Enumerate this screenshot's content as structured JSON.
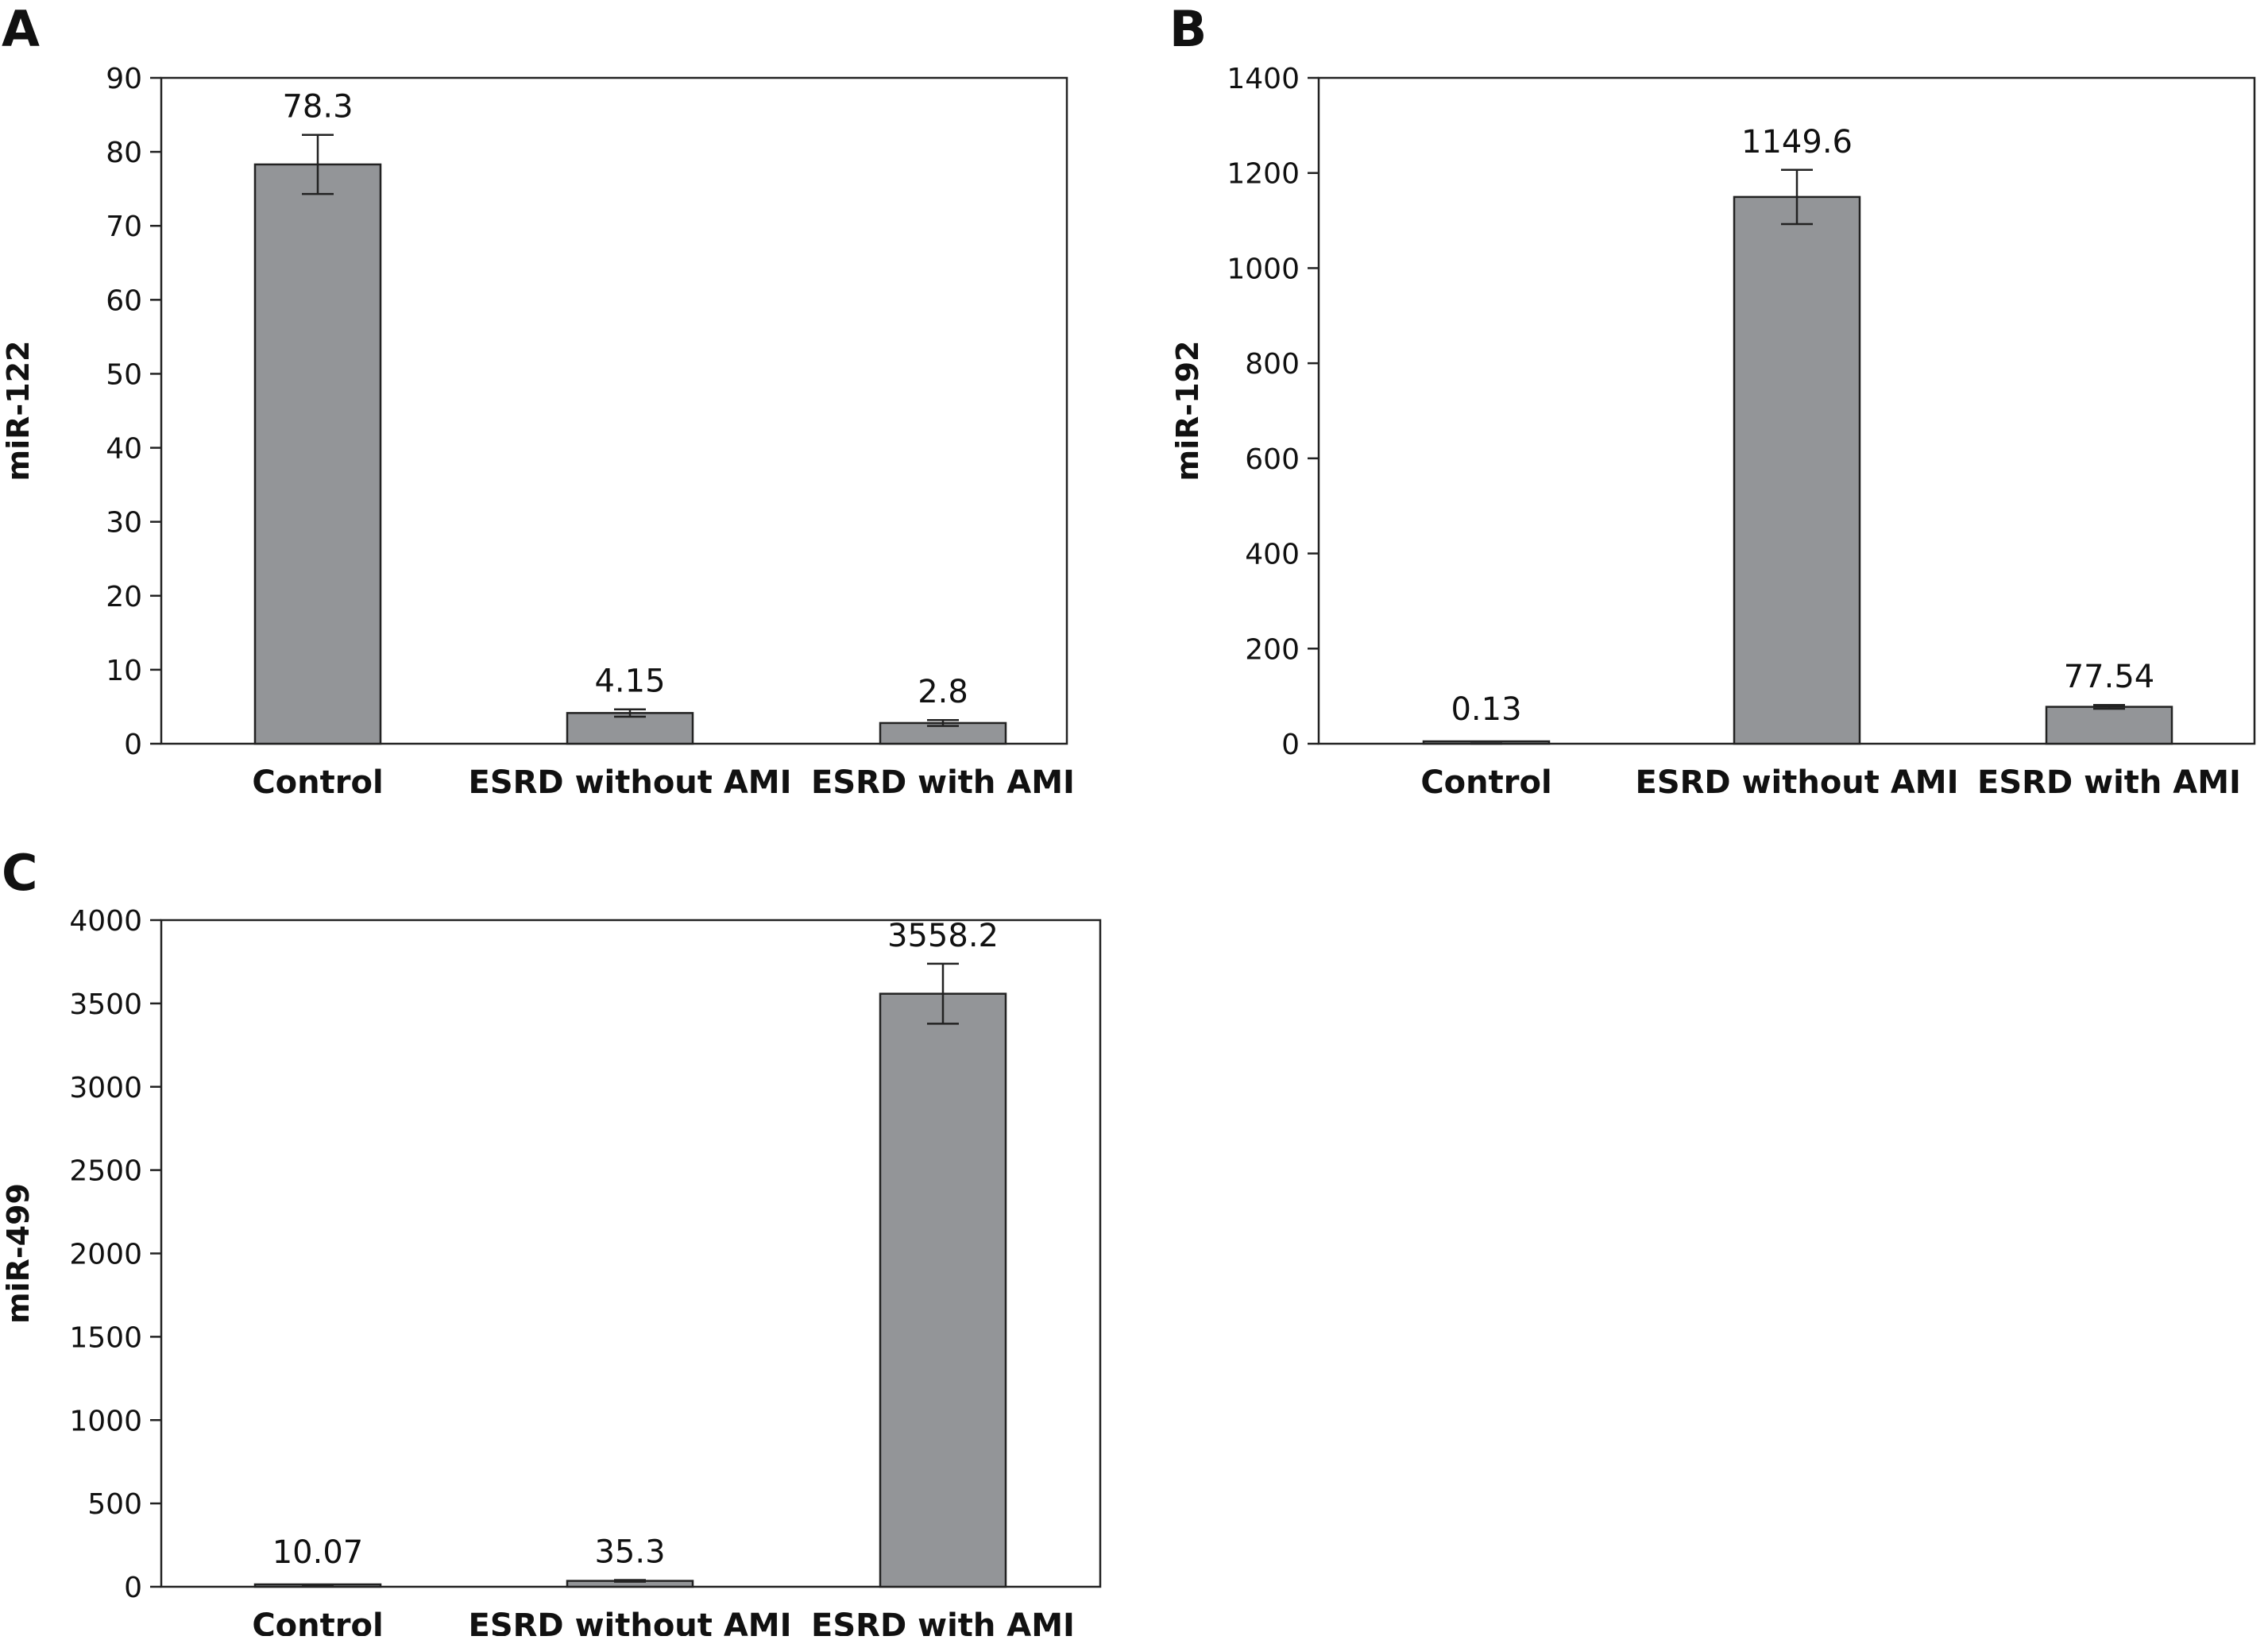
{
  "chart_data": [
    {
      "panel": "A",
      "type": "bar",
      "categories": [
        "Control",
        "ESRD without AMI",
        "ESRD with AMI"
      ],
      "values": [
        78.3,
        4.15,
        2.8
      ],
      "value_labels": [
        "78.3",
        "4.15",
        "2.8"
      ],
      "error": [
        4.0,
        0.5,
        0.4
      ],
      "ylabel": "miR-122",
      "ylim": [
        0,
        90
      ],
      "yticks": [
        0,
        10,
        20,
        30,
        40,
        50,
        60,
        70,
        80,
        90
      ],
      "bar_color": "#939598"
    },
    {
      "panel": "B",
      "type": "bar",
      "categories": [
        "Control",
        "ESRD without AMI",
        "ESRD with AMI"
      ],
      "values": [
        0.13,
        1149.6,
        77.54
      ],
      "value_labels": [
        "0.13",
        "1149.6",
        "77.54"
      ],
      "error": [
        0.5,
        57,
        4
      ],
      "ylabel": "miR-192",
      "ylim": [
        0,
        1400
      ],
      "yticks": [
        0,
        200,
        400,
        600,
        800,
        1000,
        1200,
        1400
      ],
      "bar_color": "#939598"
    },
    {
      "panel": "C",
      "type": "bar",
      "categories": [
        "Control",
        "ESRD without AMI",
        "ESRD with AMI"
      ],
      "values": [
        10.07,
        35.3,
        3558.2
      ],
      "value_labels": [
        "10.07",
        "35.3",
        "3558.2"
      ],
      "error": [
        2,
        5,
        180
      ],
      "ylabel": "miR-499",
      "ylim": [
        0,
        4000
      ],
      "yticks": [
        0,
        500,
        1000,
        1500,
        2000,
        2500,
        3000,
        3500,
        4000
      ],
      "bar_color": "#939598"
    }
  ]
}
